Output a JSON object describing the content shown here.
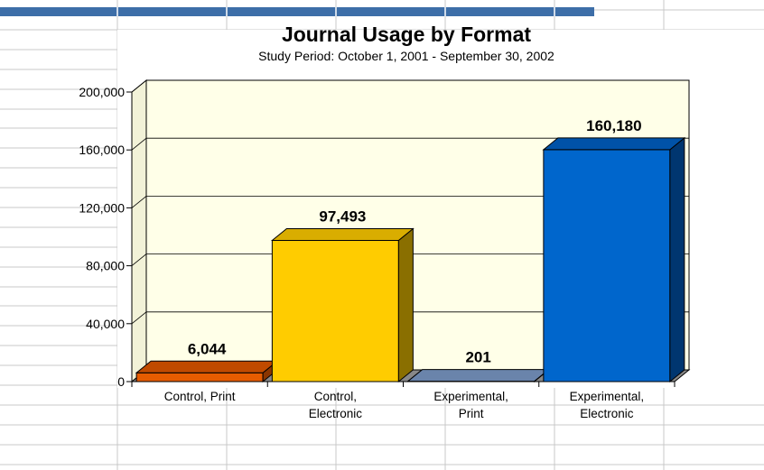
{
  "chart_data": {
    "type": "bar",
    "title": "Journal Usage by Format",
    "subtitle": "Study Period: October 1, 2001 - September 30, 2002",
    "categories": [
      [
        "Control, Print"
      ],
      [
        "Control,",
        "Electronic"
      ],
      [
        "Experimental,",
        "Print"
      ],
      [
        "Experimental,",
        "Electronic"
      ]
    ],
    "values": [
      6044,
      97493,
      201,
      160180
    ],
    "data_labels": [
      "6,044",
      "97,493",
      "201",
      "160,180"
    ],
    "ylim": [
      0,
      200000
    ],
    "yticks": [
      0,
      40000,
      80000,
      120000,
      160000,
      200000
    ],
    "ytick_labels": [
      "0",
      "40,000",
      "80,000",
      "120,000",
      "160,000",
      "200,000"
    ],
    "grid": true,
    "legend": "none",
    "bar_colors": [
      "#e65c00",
      "#ffcc00",
      "#7f9ac0",
      "#0066cc"
    ],
    "bar_side_colors": [
      "#8a3500",
      "#8a6f00",
      "#4a5f80",
      "#003670"
    ],
    "bar_top_colors": [
      "#c04a00",
      "#d9ad00",
      "#6a84ab",
      "#0052a8"
    ],
    "plot_background": "#ffffe8",
    "floor_color": "#888888"
  },
  "colors": {
    "sheet_grid": "#c8c8c8",
    "header_bar": "#3d6ea8"
  }
}
